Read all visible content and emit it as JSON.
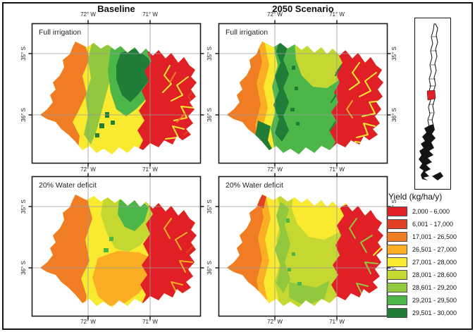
{
  "figure": {
    "column_titles": [
      "Baseline",
      "2050 Scenario"
    ],
    "row_labels": [
      "Full irrigation",
      "20% Water deficit"
    ],
    "panels": [
      {
        "column": "Baseline",
        "row": "Full irrigation"
      },
      {
        "column": "2050 Scenario",
        "row": "Full irrigation"
      },
      {
        "column": "Baseline",
        "row": "20% Water deficit"
      },
      {
        "column": "2050 Scenario",
        "row": "20% Water deficit"
      }
    ]
  },
  "axes": {
    "lon": [
      "72° W",
      "71° W"
    ],
    "lat": [
      "35° S",
      "36° S"
    ]
  },
  "legend": {
    "title": "Yield (kg/ha/y)",
    "items": [
      {
        "label": "2,000 - 6,000",
        "color": "#e02026"
      },
      {
        "label": "6,001 - 17,000",
        "color": "#e04123"
      },
      {
        "label": "17,001 - 26,500",
        "color": "#f07d24"
      },
      {
        "label": "26,501 - 27,000",
        "color": "#fbad24"
      },
      {
        "label": "27,001 - 28,000",
        "color": "#f9ea30"
      },
      {
        "label": "28,001 - 28,600",
        "color": "#c5d831"
      },
      {
        "label": "28,601 - 29,200",
        "color": "#91c83e"
      },
      {
        "label": "29,201 - 29,500",
        "color": "#4cb748"
      },
      {
        "label": "29,501 - 30,000",
        "color": "#1f7d37"
      }
    ]
  },
  "inset": {
    "region_highlight_color": "#e02026"
  }
}
